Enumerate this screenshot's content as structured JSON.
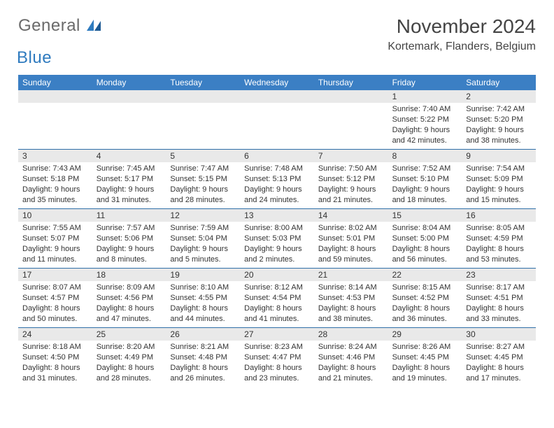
{
  "brand": {
    "part1": "General",
    "part2": "Blue"
  },
  "title": "November 2024",
  "location": "Kortemark, Flanders, Belgium",
  "style": {
    "header_bg": "#3b7fc4",
    "header_text": "#ffffff",
    "row_border": "#2f6fa8",
    "daynum_bg": "#e9e9e9",
    "body_text": "#333333",
    "title_fontsize": 28,
    "location_fontsize": 16,
    "dayheader_fontsize": 12,
    "cell_fontsize": 11
  },
  "day_headers": [
    "Sunday",
    "Monday",
    "Tuesday",
    "Wednesday",
    "Thursday",
    "Friday",
    "Saturday"
  ],
  "weeks": [
    [
      {
        "n": "",
        "sr": "",
        "ss": "",
        "dl": ""
      },
      {
        "n": "",
        "sr": "",
        "ss": "",
        "dl": ""
      },
      {
        "n": "",
        "sr": "",
        "ss": "",
        "dl": ""
      },
      {
        "n": "",
        "sr": "",
        "ss": "",
        "dl": ""
      },
      {
        "n": "",
        "sr": "",
        "ss": "",
        "dl": ""
      },
      {
        "n": "1",
        "sr": "Sunrise: 7:40 AM",
        "ss": "Sunset: 5:22 PM",
        "dl": "Daylight: 9 hours and 42 minutes."
      },
      {
        "n": "2",
        "sr": "Sunrise: 7:42 AM",
        "ss": "Sunset: 5:20 PM",
        "dl": "Daylight: 9 hours and 38 minutes."
      }
    ],
    [
      {
        "n": "3",
        "sr": "Sunrise: 7:43 AM",
        "ss": "Sunset: 5:18 PM",
        "dl": "Daylight: 9 hours and 35 minutes."
      },
      {
        "n": "4",
        "sr": "Sunrise: 7:45 AM",
        "ss": "Sunset: 5:17 PM",
        "dl": "Daylight: 9 hours and 31 minutes."
      },
      {
        "n": "5",
        "sr": "Sunrise: 7:47 AM",
        "ss": "Sunset: 5:15 PM",
        "dl": "Daylight: 9 hours and 28 minutes."
      },
      {
        "n": "6",
        "sr": "Sunrise: 7:48 AM",
        "ss": "Sunset: 5:13 PM",
        "dl": "Daylight: 9 hours and 24 minutes."
      },
      {
        "n": "7",
        "sr": "Sunrise: 7:50 AM",
        "ss": "Sunset: 5:12 PM",
        "dl": "Daylight: 9 hours and 21 minutes."
      },
      {
        "n": "8",
        "sr": "Sunrise: 7:52 AM",
        "ss": "Sunset: 5:10 PM",
        "dl": "Daylight: 9 hours and 18 minutes."
      },
      {
        "n": "9",
        "sr": "Sunrise: 7:54 AM",
        "ss": "Sunset: 5:09 PM",
        "dl": "Daylight: 9 hours and 15 minutes."
      }
    ],
    [
      {
        "n": "10",
        "sr": "Sunrise: 7:55 AM",
        "ss": "Sunset: 5:07 PM",
        "dl": "Daylight: 9 hours and 11 minutes."
      },
      {
        "n": "11",
        "sr": "Sunrise: 7:57 AM",
        "ss": "Sunset: 5:06 PM",
        "dl": "Daylight: 9 hours and 8 minutes."
      },
      {
        "n": "12",
        "sr": "Sunrise: 7:59 AM",
        "ss": "Sunset: 5:04 PM",
        "dl": "Daylight: 9 hours and 5 minutes."
      },
      {
        "n": "13",
        "sr": "Sunrise: 8:00 AM",
        "ss": "Sunset: 5:03 PM",
        "dl": "Daylight: 9 hours and 2 minutes."
      },
      {
        "n": "14",
        "sr": "Sunrise: 8:02 AM",
        "ss": "Sunset: 5:01 PM",
        "dl": "Daylight: 8 hours and 59 minutes."
      },
      {
        "n": "15",
        "sr": "Sunrise: 8:04 AM",
        "ss": "Sunset: 5:00 PM",
        "dl": "Daylight: 8 hours and 56 minutes."
      },
      {
        "n": "16",
        "sr": "Sunrise: 8:05 AM",
        "ss": "Sunset: 4:59 PM",
        "dl": "Daylight: 8 hours and 53 minutes."
      }
    ],
    [
      {
        "n": "17",
        "sr": "Sunrise: 8:07 AM",
        "ss": "Sunset: 4:57 PM",
        "dl": "Daylight: 8 hours and 50 minutes."
      },
      {
        "n": "18",
        "sr": "Sunrise: 8:09 AM",
        "ss": "Sunset: 4:56 PM",
        "dl": "Daylight: 8 hours and 47 minutes."
      },
      {
        "n": "19",
        "sr": "Sunrise: 8:10 AM",
        "ss": "Sunset: 4:55 PM",
        "dl": "Daylight: 8 hours and 44 minutes."
      },
      {
        "n": "20",
        "sr": "Sunrise: 8:12 AM",
        "ss": "Sunset: 4:54 PM",
        "dl": "Daylight: 8 hours and 41 minutes."
      },
      {
        "n": "21",
        "sr": "Sunrise: 8:14 AM",
        "ss": "Sunset: 4:53 PM",
        "dl": "Daylight: 8 hours and 38 minutes."
      },
      {
        "n": "22",
        "sr": "Sunrise: 8:15 AM",
        "ss": "Sunset: 4:52 PM",
        "dl": "Daylight: 8 hours and 36 minutes."
      },
      {
        "n": "23",
        "sr": "Sunrise: 8:17 AM",
        "ss": "Sunset: 4:51 PM",
        "dl": "Daylight: 8 hours and 33 minutes."
      }
    ],
    [
      {
        "n": "24",
        "sr": "Sunrise: 8:18 AM",
        "ss": "Sunset: 4:50 PM",
        "dl": "Daylight: 8 hours and 31 minutes."
      },
      {
        "n": "25",
        "sr": "Sunrise: 8:20 AM",
        "ss": "Sunset: 4:49 PM",
        "dl": "Daylight: 8 hours and 28 minutes."
      },
      {
        "n": "26",
        "sr": "Sunrise: 8:21 AM",
        "ss": "Sunset: 4:48 PM",
        "dl": "Daylight: 8 hours and 26 minutes."
      },
      {
        "n": "27",
        "sr": "Sunrise: 8:23 AM",
        "ss": "Sunset: 4:47 PM",
        "dl": "Daylight: 8 hours and 23 minutes."
      },
      {
        "n": "28",
        "sr": "Sunrise: 8:24 AM",
        "ss": "Sunset: 4:46 PM",
        "dl": "Daylight: 8 hours and 21 minutes."
      },
      {
        "n": "29",
        "sr": "Sunrise: 8:26 AM",
        "ss": "Sunset: 4:45 PM",
        "dl": "Daylight: 8 hours and 19 minutes."
      },
      {
        "n": "30",
        "sr": "Sunrise: 8:27 AM",
        "ss": "Sunset: 4:45 PM",
        "dl": "Daylight: 8 hours and 17 minutes."
      }
    ]
  ]
}
